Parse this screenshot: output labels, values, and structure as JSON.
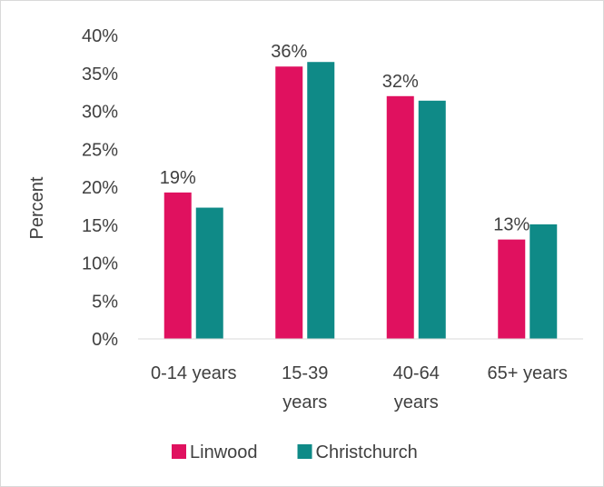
{
  "chart_data": {
    "type": "bar",
    "categories": [
      [
        "0-14 years"
      ],
      [
        "15-39",
        "years"
      ],
      [
        "40-64",
        "years"
      ],
      [
        "65+ years"
      ]
    ],
    "series": [
      {
        "name": "Linwood",
        "color": "#e0115f",
        "values": [
          19.3,
          35.9,
          32.0,
          13.1
        ],
        "labels": [
          "19%",
          "36%",
          "32%",
          "13%"
        ]
      },
      {
        "name": "Christchurch",
        "color": "#0f8a87",
        "values": [
          17.3,
          36.5,
          31.4,
          15.1
        ]
      }
    ],
    "ylabel": "Percent",
    "ylim": [
      0,
      40
    ],
    "yticks": [
      "0%",
      "5%",
      "10%",
      "15%",
      "20%",
      "25%",
      "30%",
      "35%",
      "40%"
    ],
    "ytick_values": [
      0,
      5,
      10,
      15,
      20,
      25,
      30,
      35,
      40
    ],
    "grid": false,
    "legend_position": "bottom"
  }
}
